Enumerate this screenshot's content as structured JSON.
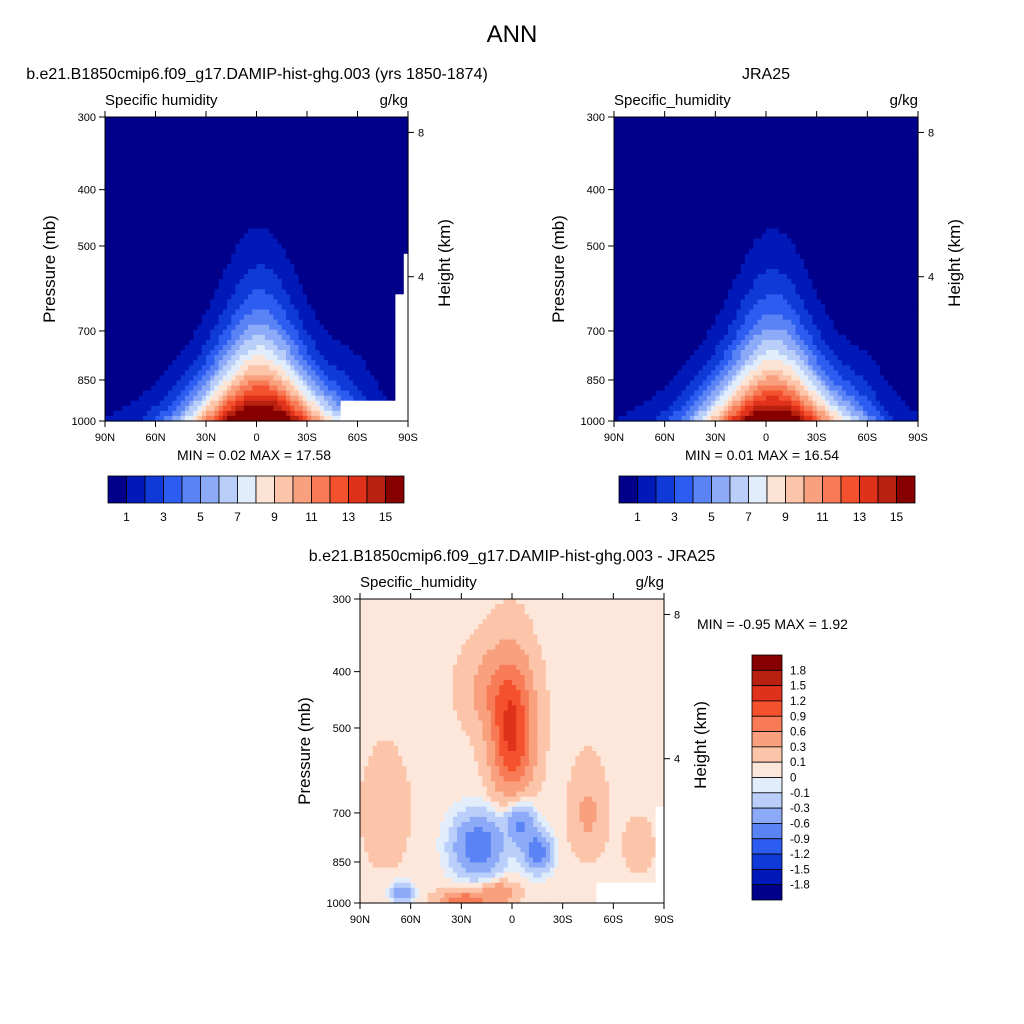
{
  "page": {
    "title": "ANN"
  },
  "colors": {
    "full_field": [
      "#00008b",
      "#0019b8",
      "#0f3ad8",
      "#2d5cf0",
      "#5a83f5",
      "#8caaf8",
      "#b9cffa",
      "#e2edfc",
      "#fde3d4",
      "#fcc4a8",
      "#f9a07e",
      "#f77b56",
      "#f4512e",
      "#e0321a",
      "#b8200f",
      "#870000"
    ],
    "diff_field": [
      "#00008b",
      "#0019b8",
      "#0f3ad8",
      "#2d5cf0",
      "#5a83f5",
      "#8caaf8",
      "#b9cffa",
      "#e2edfc",
      "#fde7da",
      "#fcc4a8",
      "#f9a07e",
      "#f77b56",
      "#f4512e",
      "#e0321a",
      "#b8200f",
      "#870000"
    ],
    "missing": "#ffffff"
  },
  "chart_data": [
    {
      "type": "heatmap",
      "title": "b.e21.B1850cmip6.f09_g17.DAMIP-hist-ghg.003 (yrs 1850-1874)",
      "left_label": "Specific humidity",
      "right_label": "g/kg",
      "xlabel": "",
      "ylabel": "Pressure (mb)",
      "ylabel_right": "Height (km)",
      "x_ticks": [
        "90N",
        "60N",
        "30N",
        "0",
        "30S",
        "60S",
        "90S"
      ],
      "y_ticks": [
        "300",
        "400",
        "500",
        "700",
        "850",
        "1000"
      ],
      "y_right_ticks": [
        "8",
        "4"
      ],
      "stats": "MIN =   0.02  MAX =  17.58",
      "colorbar_labels": [
        "1",
        "3",
        "5",
        "7",
        "9",
        "11",
        "13",
        "15"
      ],
      "xlim": [
        90,
        -90
      ],
      "ylim": [
        1000,
        300
      ],
      "levels": [
        1,
        2,
        3,
        4,
        5,
        6,
        7,
        8,
        9,
        10,
        11,
        12,
        13,
        14,
        15
      ],
      "min": 0.02,
      "max": 17.58
    },
    {
      "type": "heatmap",
      "title": "JRA25",
      "left_label": "Specific_humidity",
      "right_label": "g/kg",
      "xlabel": "",
      "ylabel": "Pressure (mb)",
      "ylabel_right": "Height (km)",
      "x_ticks": [
        "90N",
        "60N",
        "30N",
        "0",
        "30S",
        "60S",
        "90S"
      ],
      "y_ticks": [
        "300",
        "400",
        "500",
        "700",
        "850",
        "1000"
      ],
      "y_right_ticks": [
        "8",
        "4"
      ],
      "stats": "MIN =   0.01  MAX =  16.54",
      "colorbar_labels": [
        "1",
        "3",
        "5",
        "7",
        "9",
        "11",
        "13",
        "15"
      ],
      "xlim": [
        90,
        -90
      ],
      "ylim": [
        1000,
        300
      ],
      "levels": [
        1,
        2,
        3,
        4,
        5,
        6,
        7,
        8,
        9,
        10,
        11,
        12,
        13,
        14,
        15
      ],
      "min": 0.01,
      "max": 16.54
    },
    {
      "type": "heatmap",
      "title": "b.e21.B1850cmip6.f09_g17.DAMIP-hist-ghg.003 - JRA25",
      "left_label": "Specific_humidity",
      "right_label": "g/kg",
      "xlabel": "",
      "ylabel": "Pressure (mb)",
      "ylabel_right": "Height (km)",
      "x_ticks": [
        "90N",
        "60N",
        "30N",
        "0",
        "30S",
        "60S",
        "90S"
      ],
      "y_ticks": [
        "300",
        "400",
        "500",
        "700",
        "850",
        "1000"
      ],
      "y_right_ticks": [
        "8",
        "4"
      ],
      "stats": "MIN =  -0.95  MAX =   1.92",
      "colorbar_labels": [
        "1.8",
        "1.5",
        "1.2",
        "0.9",
        "0.6",
        "0.3",
        "0.1",
        "0",
        "-0.1",
        "-0.3",
        "-0.6",
        "-0.9",
        "-1.2",
        "-1.5",
        "-1.8"
      ],
      "xlim": [
        90,
        -90
      ],
      "ylim": [
        1000,
        300
      ],
      "levels": [
        -1.8,
        -1.5,
        -1.2,
        -0.9,
        -0.6,
        -0.3,
        -0.1,
        0,
        0.1,
        0.3,
        0.6,
        0.9,
        1.2,
        1.5,
        1.8
      ],
      "min": -0.95,
      "max": 1.92
    }
  ]
}
